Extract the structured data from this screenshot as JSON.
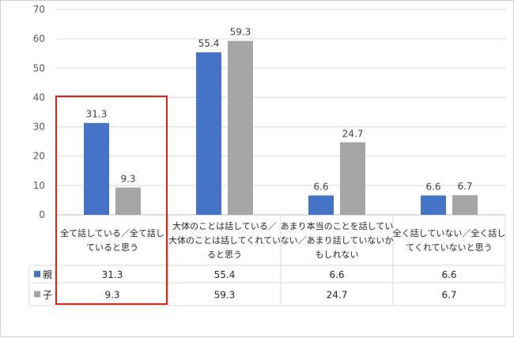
{
  "chart_data": {
    "type": "bar",
    "title": "",
    "xlabel": "",
    "ylabel": "",
    "ylim": [
      0,
      70
    ],
    "yticks": [
      0,
      10,
      20,
      30,
      40,
      50,
      60,
      70
    ],
    "grid": true,
    "categories": [
      [
        "全て話している／全て話し",
        "ていると思う"
      ],
      [
        "大体のことは話している／",
        "大体のことは話してくれてい",
        "ると思う"
      ],
      [
        "あまり本当のことを話してい",
        "ない／あまり話していないか",
        "もしれない"
      ],
      [
        "全く話していない／全く話し",
        "てくれていないと思う"
      ]
    ],
    "series": [
      {
        "name": "親",
        "color": "#4472C4",
        "values": [
          31.3,
          55.4,
          6.6,
          6.6
        ],
        "labels": [
          "31.3",
          "55.4",
          "6.6",
          "6.6"
        ]
      },
      {
        "name": "子",
        "color": "#A5A5A5",
        "values": [
          9.3,
          59.3,
          24.7,
          6.7
        ],
        "labels": [
          "9.3",
          "59.3",
          "24.7",
          "6.7"
        ]
      }
    ],
    "legend_placement": "data-table",
    "highlight": {
      "category_index": 0,
      "color": "#E32119"
    }
  }
}
